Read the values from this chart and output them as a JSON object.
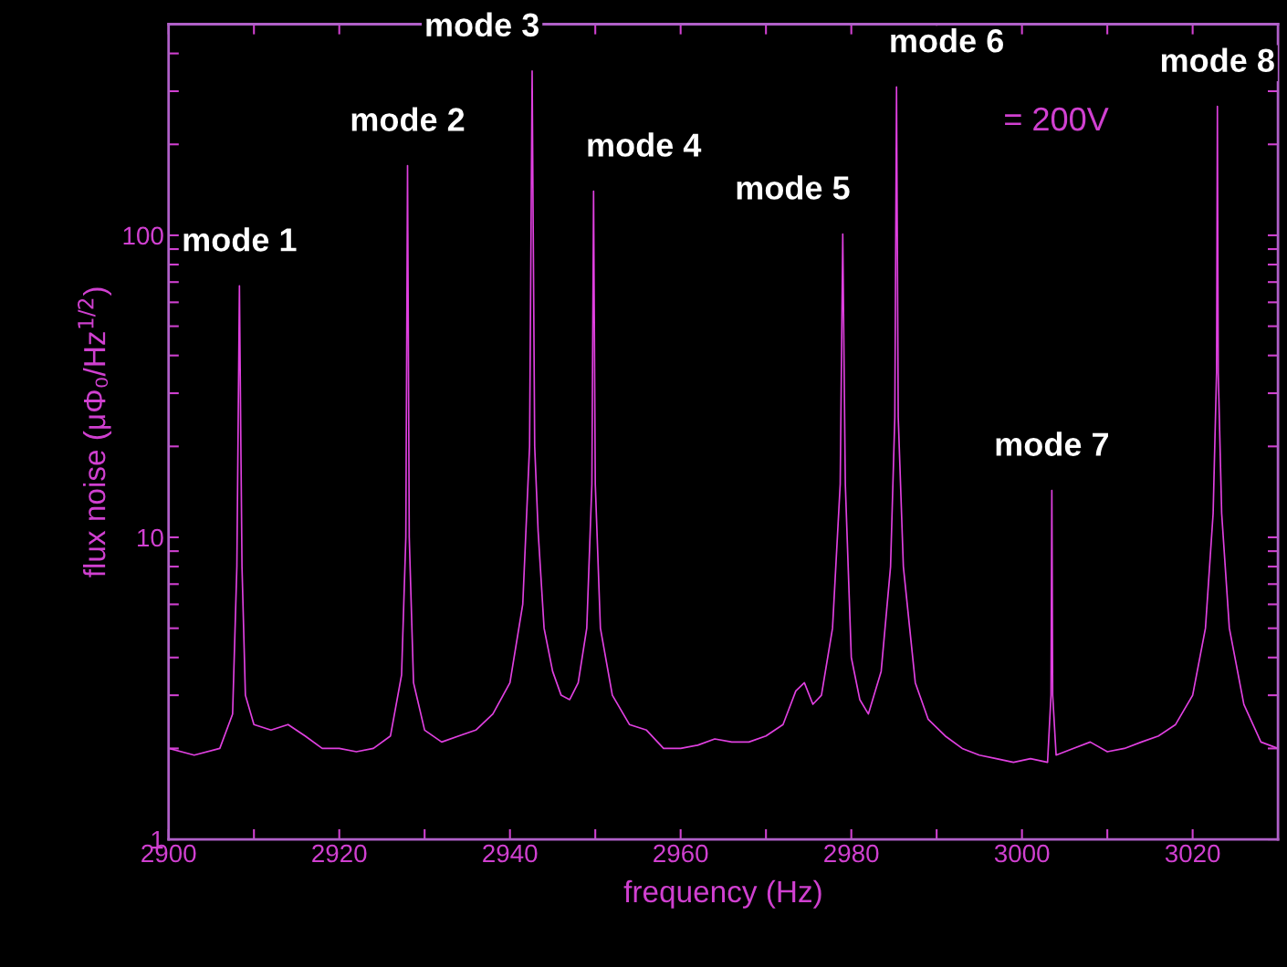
{
  "chart_data": {
    "type": "line",
    "xlabel": "frequency (Hz)",
    "ylabel": "flux noise (μΦ₀/Hz$^{1/2}$)",
    "log": "y",
    "grid": false,
    "legend": false,
    "marker": "none",
    "line_style": "solid",
    "xlim": [
      2900,
      3030
    ],
    "ylim": [
      1,
      500
    ],
    "xticks": [
      2900,
      {
        "value": 2910,
        "label": null
      },
      2920,
      {
        "value": 2930,
        "label": null
      },
      2940,
      {
        "value": 2950,
        "label": null
      },
      2960,
      {
        "value": 2970,
        "label": null
      },
      2980,
      {
        "value": 2990,
        "label": null
      },
      3000,
      {
        "value": 3010,
        "label": null
      },
      3020
    ],
    "yticks": [
      1,
      {
        "value": 2,
        "label": null
      },
      {
        "value": 3,
        "label": null
      },
      {
        "value": 4,
        "label": null
      },
      {
        "value": 5,
        "label": null
      },
      {
        "value": 6,
        "label": null
      },
      {
        "value": 7,
        "label": null
      },
      {
        "value": 8,
        "label": null
      },
      {
        "value": 9,
        "label": null
      },
      10,
      {
        "value": 20,
        "label": null
      },
      {
        "value": 30,
        "label": null
      },
      {
        "value": 40,
        "label": null
      },
      {
        "value": 50,
        "label": null
      },
      {
        "value": 60,
        "label": null
      },
      {
        "value": 70,
        "label": null
      },
      {
        "value": 80,
        "label": null
      },
      {
        "value": 90,
        "label": null
      },
      100,
      {
        "value": 200,
        "label": null
      },
      {
        "value": 300,
        "label": null
      },
      {
        "value": 400,
        "label": null
      },
      {
        "value": 500,
        "label": null
      }
    ],
    "series": [
      {
        "color": "#e040e0",
        "x": [
          2900,
          2903,
          2906,
          2907.5,
          2908.0,
          2908.3,
          2908.6,
          2909,
          2910,
          2912,
          2914,
          2916,
          2918,
          2920,
          2922,
          2924,
          2926,
          2927.3,
          2927.8,
          2928.0,
          2928.2,
          2928.7,
          2930,
          2932,
          2934,
          2936,
          2938,
          2940,
          2941.5,
          2942.3,
          2942.6,
          2942.9,
          2943.3,
          2944,
          2945,
          2946,
          2947,
          2948,
          2949,
          2949.6,
          2949.8,
          2950.0,
          2950.6,
          2952,
          2954,
          2956,
          2958,
          2960,
          2962,
          2964,
          2966,
          2968,
          2970,
          2972,
          2973.5,
          2974.5,
          2975.5,
          2976.5,
          2977.8,
          2978.7,
          2979.0,
          2979.3,
          2980,
          2981,
          2982,
          2983.5,
          2984.6,
          2985.1,
          2985.3,
          2985.5,
          2986.1,
          2987.5,
          2989,
          2991,
          2993,
          2995,
          2997,
          2999,
          3001,
          3003,
          3003.4,
          3003.5,
          3003.6,
          3004,
          3006,
          3008,
          3010,
          3012,
          3014,
          3016,
          3018,
          3020,
          3021.5,
          3022.4,
          3022.8,
          3022.9,
          3023.0,
          3023.4,
          3024.3,
          3026,
          3028,
          3030
        ],
        "values": [
          2.0,
          1.9,
          2.0,
          2.6,
          8,
          68,
          8,
          3.0,
          2.4,
          2.3,
          2.4,
          2.2,
          2.0,
          2.0,
          1.95,
          2.0,
          2.2,
          3.5,
          10,
          170,
          10,
          3.3,
          2.3,
          2.1,
          2.2,
          2.3,
          2.6,
          3.3,
          6,
          20,
          350,
          20,
          10.5,
          5,
          3.6,
          3.0,
          2.9,
          3.3,
          5,
          15,
          140,
          15,
          5,
          3.0,
          2.4,
          2.3,
          2.0,
          2.0,
          2.05,
          2.15,
          2.1,
          2.1,
          2.2,
          2.4,
          3.1,
          3.3,
          2.8,
          3.0,
          5,
          15,
          101,
          15,
          4,
          2.9,
          2.6,
          3.6,
          8,
          25,
          310,
          25,
          8,
          3.3,
          2.5,
          2.2,
          2.0,
          1.9,
          1.85,
          1.8,
          1.85,
          1.8,
          3,
          14.3,
          3,
          1.9,
          2.0,
          2.1,
          1.95,
          2.0,
          2.1,
          2.2,
          2.4,
          3.0,
          5,
          12,
          35,
          267,
          35,
          12,
          5,
          2.8,
          2.1,
          2.0
        ]
      }
    ],
    "annotations": [
      {
        "text": "mode 1",
        "x": 2908.3,
        "y": 68
      },
      {
        "text": "mode 2",
        "x": 2928.0,
        "y": 170
      },
      {
        "text": "mode 3",
        "x": 2942.6,
        "y": 350
      },
      {
        "text": "mode 4",
        "x": 2949.8,
        "y": 140
      },
      {
        "text": "mode 5",
        "x": 2979.0,
        "y": 101
      },
      {
        "text": "mode 6",
        "x": 2985.3,
        "y": 310
      },
      {
        "text": "mode 7",
        "x": 3003.5,
        "y": 14.3
      },
      {
        "text": "mode 8",
        "x": 3022.9,
        "y": 267
      },
      "= 200V"
    ]
  }
}
